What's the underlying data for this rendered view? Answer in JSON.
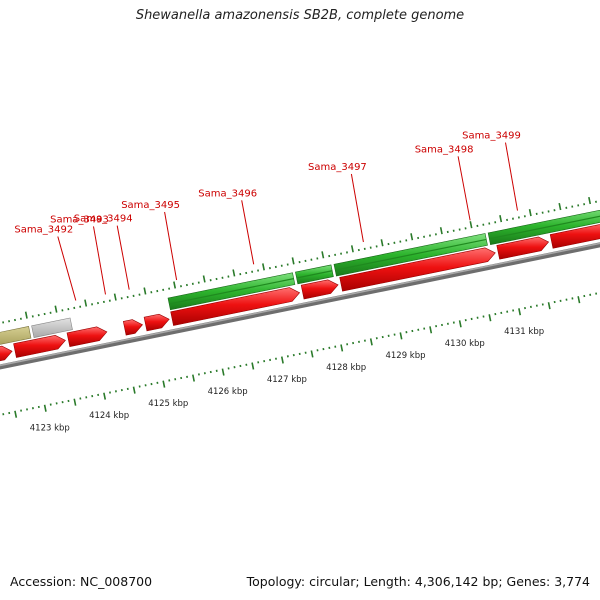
{
  "title": "Shewanella amazonensis SB2B, complete genome",
  "footer": {
    "accession": "Accession: NC_008700",
    "summary": "Topology: circular; Length: 4,306,142 bp; Genes: 3,774"
  },
  "colors": {
    "cds": "#ee1111",
    "gene_green": "#2db42d",
    "gene_olive": "#b8b068",
    "gene_gray": "#bdbdbd",
    "backbone": "#8a8a8a",
    "ticks": "#2a7a2a",
    "label": "#cc0000"
  },
  "gene_labels": [
    {
      "text": "Sama_3492",
      "kbp": 4123.85
    },
    {
      "text": "Sama_3493",
      "kbp": 4124.35
    },
    {
      "text": "Sama_3494",
      "kbp": 4124.75
    },
    {
      "text": "Sama_3495",
      "kbp": 4125.55
    },
    {
      "text": "Sama_3496",
      "kbp": 4126.85
    },
    {
      "text": "Sama_3497",
      "kbp": 4128.7
    },
    {
      "text": "Sama_3498",
      "kbp": 4130.5
    },
    {
      "text": "Sama_3499",
      "kbp": 4131.3
    }
  ],
  "kbp_labels": [
    "4123 kbp",
    "4124 kbp",
    "4125 kbp",
    "4126 kbp",
    "4127 kbp",
    "4128 kbp",
    "4129 kbp",
    "4130 kbp",
    "4131 kbp"
  ],
  "kbp_values": [
    4123,
    4124,
    4125,
    4126,
    4127,
    4128,
    4129,
    4130,
    4131
  ],
  "cds_features": [
    {
      "start": 4122.2,
      "end": 4122.65,
      "strand": "+"
    },
    {
      "start": 4122.7,
      "end": 4123.55,
      "strand": "+"
    },
    {
      "start": 4123.6,
      "end": 4124.25,
      "strand": "+"
    },
    {
      "start": 4124.55,
      "end": 4124.85,
      "strand": "+"
    },
    {
      "start": 4124.9,
      "end": 4125.3,
      "strand": "+"
    },
    {
      "start": 4125.35,
      "end": 4127.5,
      "strand": "+"
    },
    {
      "start": 4127.55,
      "end": 4128.15,
      "strand": "+"
    },
    {
      "start": 4128.2,
      "end": 4130.8,
      "strand": "+"
    },
    {
      "start": 4130.85,
      "end": 4131.7,
      "strand": "+"
    },
    {
      "start": 4131.75,
      "end": 4132.9,
      "strand": "+"
    }
  ],
  "gene_features": [
    {
      "start": 4122.0,
      "end": 4123.0,
      "color": "olive"
    },
    {
      "start": 4123.05,
      "end": 4123.7,
      "color": "gray"
    },
    {
      "start": 4125.35,
      "end": 4127.45,
      "color": "green"
    },
    {
      "start": 4127.5,
      "end": 4128.1,
      "color": "green"
    },
    {
      "start": 4128.15,
      "end": 4130.7,
      "color": "green"
    },
    {
      "start": 4130.75,
      "end": 4132.9,
      "color": "green"
    }
  ]
}
